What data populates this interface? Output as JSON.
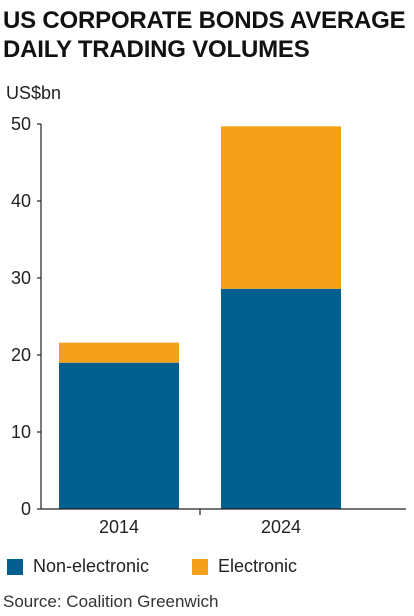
{
  "title_lines": [
    "US CORPORATE BONDS AVERAGE",
    "DAILY TRADING VOLUMES"
  ],
  "unit_label": "US$bn",
  "source": "Source: Coalition Greenwich",
  "colors": {
    "non_electronic": "#005f8f",
    "electronic": "#f5a01a",
    "axis": "#222222",
    "tick_text": "#222222"
  },
  "chart_data": {
    "type": "bar",
    "stacked": true,
    "title": "US CORPORATE BONDS AVERAGE DAILY TRADING VOLUMES",
    "ylabel": "US$bn",
    "categories": [
      "2014",
      "2024"
    ],
    "series": [
      {
        "name": "Non-electronic",
        "values": [
          19,
          28.6
        ]
      },
      {
        "name": "Electronic",
        "values": [
          2.6,
          21.1
        ]
      }
    ],
    "ylim": [
      0,
      50
    ],
    "yticks": [
      0,
      10,
      20,
      30,
      40,
      50
    ],
    "grid": false,
    "legend_position": "bottom-left"
  }
}
